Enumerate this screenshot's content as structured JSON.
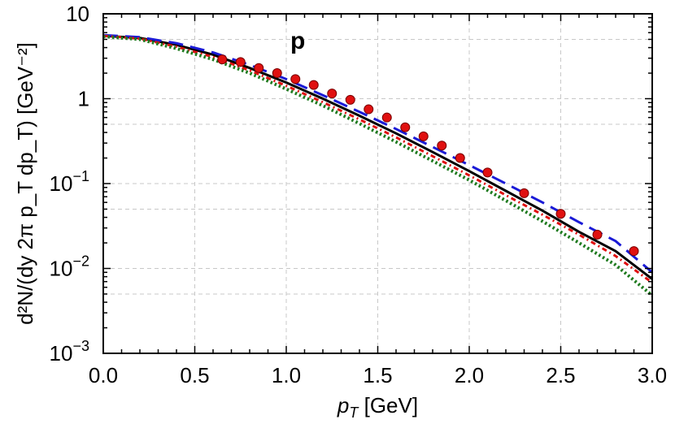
{
  "chart_data": {
    "type": "line",
    "panel_label": "p",
    "xlabel": {
      "main": "p",
      "sub": "T",
      "unit": " [GeV]"
    },
    "ylabel": "d²N/(dy 2π p_T dp_T) [GeV⁻²]",
    "xlim": [
      0.0,
      3.0
    ],
    "ylim": [
      0.001,
      10
    ],
    "yscale": "log",
    "grid": true,
    "x_ticks": [
      "0.0",
      "0.5",
      "1.0",
      "1.5",
      "2.0",
      "2.5",
      "3.0"
    ],
    "y_ticks": [
      {
        "value": 10,
        "base": "10",
        "exp": ""
      },
      {
        "value": 1,
        "base": "1",
        "exp": ""
      },
      {
        "value": 0.1,
        "base": "10",
        "exp": "−1"
      },
      {
        "value": 0.01,
        "base": "10",
        "exp": "−2"
      },
      {
        "value": 0.001,
        "base": "10",
        "exp": "−3"
      }
    ],
    "series": [
      {
        "style": "solid",
        "color": "#000000",
        "x": [
          0.0,
          0.2,
          0.4,
          0.6,
          0.8,
          1.0,
          1.2,
          1.4,
          1.6,
          1.8,
          2.0,
          2.2,
          2.4,
          2.6,
          2.8,
          3.0
        ],
        "y": [
          5.5,
          5.2,
          4.3,
          3.3,
          2.3,
          1.55,
          1.0,
          0.63,
          0.39,
          0.235,
          0.14,
          0.082,
          0.048,
          0.027,
          0.016,
          0.0075
        ]
      },
      {
        "style": "dashed",
        "color": "#1a1ad6",
        "x": [
          0.0,
          0.2,
          0.4,
          0.6,
          0.8,
          1.0,
          1.2,
          1.4,
          1.6,
          1.8,
          2.0,
          2.2,
          2.4,
          2.6,
          2.8,
          3.0
        ],
        "y": [
          5.6,
          5.3,
          4.5,
          3.5,
          2.5,
          1.7,
          1.1,
          0.7,
          0.44,
          0.27,
          0.165,
          0.1,
          0.06,
          0.035,
          0.021,
          0.009
        ]
      },
      {
        "style": "dashdot",
        "color": "#e01010",
        "x": [
          0.0,
          0.2,
          0.4,
          0.6,
          0.8,
          1.0,
          1.2,
          1.4,
          1.6,
          1.8,
          2.0,
          2.2,
          2.4,
          2.6,
          2.8,
          3.0
        ],
        "y": [
          5.5,
          5.1,
          4.1,
          3.1,
          2.15,
          1.42,
          0.91,
          0.57,
          0.35,
          0.21,
          0.125,
          0.073,
          0.043,
          0.025,
          0.014,
          0.0068
        ]
      },
      {
        "style": "dotted",
        "color": "#1e7a1e",
        "x": [
          0.0,
          0.2,
          0.4,
          0.6,
          0.8,
          1.0,
          1.2,
          1.4,
          1.6,
          1.8,
          2.0,
          2.2,
          2.4,
          2.6,
          2.8,
          3.0
        ],
        "y": [
          5.4,
          5.0,
          3.9,
          2.9,
          2.0,
          1.3,
          0.83,
          0.51,
          0.31,
          0.185,
          0.11,
          0.063,
          0.036,
          0.02,
          0.011,
          0.0048
        ]
      }
    ],
    "points": {
      "color": "#e01010",
      "x": [
        0.65,
        0.75,
        0.85,
        0.95,
        1.05,
        1.15,
        1.25,
        1.35,
        1.45,
        1.55,
        1.65,
        1.75,
        1.85,
        1.95,
        2.1,
        2.3,
        2.5,
        2.7,
        2.9
      ],
      "y": [
        2.9,
        2.7,
        2.3,
        2.0,
        1.7,
        1.45,
        1.15,
        0.97,
        0.75,
        0.6,
        0.46,
        0.36,
        0.28,
        0.2,
        0.135,
        0.077,
        0.044,
        0.025,
        0.016
      ]
    }
  }
}
